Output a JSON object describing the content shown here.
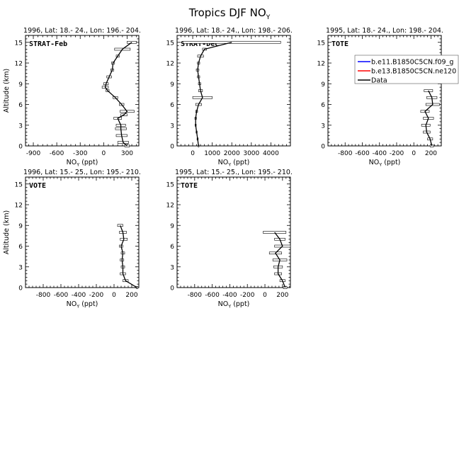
{
  "chart_data": {
    "title": "Tropics DJF NO",
    "title_sub": "Y",
    "panels": [
      {
        "header": "1996, Lat: 18.- 24., Lon: 196.- 204.",
        "campaign": "STRAT-Feb",
        "xlim": [
          -1000,
          450
        ],
        "xticks": [
          -900,
          -600,
          -300,
          0,
          300
        ],
        "ylim": [
          0,
          16
        ],
        "yticks": [
          0,
          3,
          6,
          9,
          12,
          15
        ],
        "xlabel": "NO",
        "xlabel_sub": "Y",
        "xlabel_unit": " (ppt)",
        "ylabel": "Altitude (km)",
        "data": [
          {
            "alt": 0,
            "v": 300,
            "err": 30
          },
          {
            "alt": 0.5,
            "v": 250,
            "err": 70
          },
          {
            "alt": 1.5,
            "v": 230,
            "err": 70
          },
          {
            "alt": 2.5,
            "v": 220,
            "err": 70
          },
          {
            "alt": 3.0,
            "v": 220,
            "err": 60
          },
          {
            "alt": 4.0,
            "v": 180,
            "err": 50
          },
          {
            "alt": 4.5,
            "v": 260,
            "err": 40
          },
          {
            "alt": 5.0,
            "v": 300,
            "err": 90
          },
          {
            "alt": 6.0,
            "v": 230,
            "err": 30
          },
          {
            "alt": 7.0,
            "v": 150,
            "err": 30
          },
          {
            "alt": 8.0,
            "v": 50,
            "err": 20
          },
          {
            "alt": 8.5,
            "v": 20,
            "err": 40
          },
          {
            "alt": 9.0,
            "v": 30,
            "err": 30
          },
          {
            "alt": 10.0,
            "v": 70,
            "err": 30
          },
          {
            "alt": 11.0,
            "v": 110,
            "err": 20
          },
          {
            "alt": 12.0,
            "v": 120,
            "err": 20
          },
          {
            "alt": 13.0,
            "v": 180,
            "err": 20
          },
          {
            "alt": 14.0,
            "v": 240,
            "err": 100
          },
          {
            "alt": 15.0,
            "v": 360,
            "err": 60
          }
        ]
      },
      {
        "header": "1996, Lat: 18.- 24., Lon: 198.- 206.",
        "campaign": "STRAT-Dec",
        "xlim": [
          -800,
          5000
        ],
        "xticks": [
          0,
          1000,
          2000,
          3000,
          4000
        ],
        "ylim": [
          0,
          16
        ],
        "yticks": [
          0,
          3,
          6,
          9,
          12,
          15
        ],
        "xlabel": "NO",
        "xlabel_sub": "Y",
        "xlabel_unit": " (ppt)",
        "ylabel": "",
        "data": [
          {
            "alt": 0,
            "v": 300,
            "err": 20
          },
          {
            "alt": 1.0,
            "v": 250,
            "err": 30
          },
          {
            "alt": 2.0,
            "v": 200,
            "err": 30
          },
          {
            "alt": 3.0,
            "v": 150,
            "err": 30
          },
          {
            "alt": 4.0,
            "v": 150,
            "err": 40
          },
          {
            "alt": 5.0,
            "v": 200,
            "err": 50
          },
          {
            "alt": 6.0,
            "v": 300,
            "err": 150
          },
          {
            "alt": 7.0,
            "v": 500,
            "err": 500
          },
          {
            "alt": 8.0,
            "v": 400,
            "err": 100
          },
          {
            "alt": 9.0,
            "v": 350,
            "err": 60
          },
          {
            "alt": 10.0,
            "v": 300,
            "err": 60
          },
          {
            "alt": 11.0,
            "v": 250,
            "err": 70
          },
          {
            "alt": 12.0,
            "v": 300,
            "err": 60
          },
          {
            "alt": 13.0,
            "v": 400,
            "err": 150
          },
          {
            "alt": 14.0,
            "v": 600,
            "err": 100
          },
          {
            "alt": 15.0,
            "v": 2000,
            "err": 2500
          }
        ]
      },
      {
        "header": "1995, Lat: 18.- 24., Lon: 198.- 204.",
        "campaign": "TOTE",
        "xlim": [
          -1000,
          320
        ],
        "xticks": [
          -800,
          -600,
          -400,
          -200,
          0,
          200
        ],
        "ylim": [
          0,
          16
        ],
        "yticks": [
          0,
          3,
          6,
          9,
          12,
          15
        ],
        "xlabel": "NO",
        "xlabel_sub": "Y",
        "xlabel_unit": " (ppt)",
        "ylabel": "",
        "data": [
          {
            "alt": 0,
            "v": 210,
            "err": 20
          },
          {
            "alt": 1.0,
            "v": 190,
            "err": 30
          },
          {
            "alt": 2.0,
            "v": 150,
            "err": 40
          },
          {
            "alt": 3.0,
            "v": 140,
            "err": 50
          },
          {
            "alt": 4.0,
            "v": 170,
            "err": 60
          },
          {
            "alt": 5.0,
            "v": 130,
            "err": 50
          },
          {
            "alt": 6.0,
            "v": 220,
            "err": 80
          },
          {
            "alt": 7.0,
            "v": 210,
            "err": 60
          },
          {
            "alt": 8.0,
            "v": 170,
            "err": 50
          }
        ]
      },
      {
        "header": "1996, Lat: 15.- 25., Lon: 195.- 210.",
        "campaign": "VOTE",
        "xlim": [
          -1000,
          280
        ],
        "xticks": [
          -800,
          -600,
          -400,
          -200,
          0,
          200
        ],
        "ylim": [
          0,
          16
        ],
        "yticks": [
          0,
          3,
          6,
          9,
          12,
          15
        ],
        "xlabel": "NO",
        "xlabel_sub": "Y",
        "xlabel_unit": " (ppt)",
        "ylabel": "Altitude (km)",
        "data": [
          {
            "alt": 0,
            "v": 260,
            "err": 10
          },
          {
            "alt": 1.0,
            "v": 130,
            "err": 30
          },
          {
            "alt": 2.0,
            "v": 100,
            "err": 30
          },
          {
            "alt": 3.0,
            "v": 100,
            "err": 20
          },
          {
            "alt": 4.0,
            "v": 90,
            "err": 20
          },
          {
            "alt": 5.0,
            "v": 100,
            "err": 20
          },
          {
            "alt": 6.0,
            "v": 80,
            "err": 20
          },
          {
            "alt": 7.0,
            "v": 110,
            "err": 40
          },
          {
            "alt": 8.0,
            "v": 100,
            "err": 40
          },
          {
            "alt": 9.0,
            "v": 70,
            "err": 30
          }
        ]
      },
      {
        "header": "1995, Lat: 15.- 25., Lon: 195.- 210.",
        "campaign": "TOTE",
        "xlim": [
          -1000,
          290
        ],
        "xticks": [
          -800,
          -600,
          -400,
          -200,
          0,
          200
        ],
        "ylim": [
          0,
          16
        ],
        "yticks": [
          0,
          3,
          6,
          9,
          12,
          15
        ],
        "xlabel": "NO",
        "xlabel_sub": "Y",
        "xlabel_unit": " (ppt)",
        "ylabel": "",
        "data": [
          {
            "alt": 0,
            "v": 230,
            "err": 20
          },
          {
            "alt": 1.0,
            "v": 200,
            "err": 30
          },
          {
            "alt": 2.0,
            "v": 150,
            "err": 40
          },
          {
            "alt": 3.0,
            "v": 150,
            "err": 50
          },
          {
            "alt": 4.0,
            "v": 170,
            "err": 80
          },
          {
            "alt": 5.0,
            "v": 120,
            "err": 70
          },
          {
            "alt": 6.0,
            "v": 200,
            "err": 90
          },
          {
            "alt": 7.0,
            "v": 170,
            "err": 60
          },
          {
            "alt": 8.0,
            "v": 110,
            "err": 130
          }
        ]
      }
    ],
    "legend": {
      "placement": "right of top-right panel",
      "entries": [
        {
          "label": "b.e11.B1850C5CN.f09_g",
          "color": "#0000ff"
        },
        {
          "label": "b.e13.B1850C5CN.ne120",
          "color": "#ff0000"
        },
        {
          "label": "Data",
          "color": "#000000"
        }
      ]
    }
  }
}
